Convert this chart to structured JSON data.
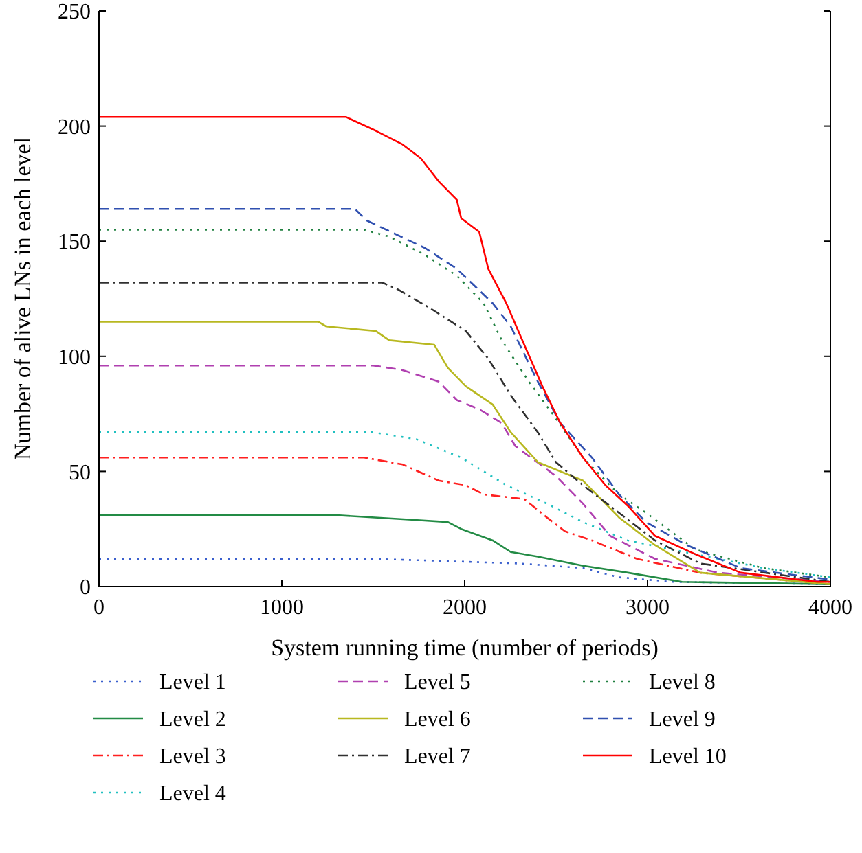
{
  "chart_data": {
    "type": "line",
    "xlabel": "System running time (number of periods)",
    "ylabel": "Number of alive LNs in each level",
    "xlim": [
      0,
      4000
    ],
    "ylim": [
      0,
      250
    ],
    "xticks": [
      0,
      1000,
      2000,
      3000,
      4000
    ],
    "yticks": [
      0,
      50,
      100,
      150,
      200,
      250
    ],
    "grid": false,
    "legend": "bottom",
    "series": [
      {
        "name": "Level 1",
        "color": "#3a5fcd",
        "line_style": "dotted",
        "x": [
          0,
          1500,
          1908,
          2301,
          2647,
          2844,
          3140,
          4000
        ],
        "values": [
          12,
          12,
          11,
          10,
          8,
          4,
          2,
          1
        ]
      },
      {
        "name": "Level 2",
        "color": "#238b45",
        "line_style": "solid",
        "x": [
          0,
          1300,
          1710,
          1908,
          1981,
          2154,
          2252,
          2400,
          2647,
          2893,
          3189,
          4000
        ],
        "values": [
          31,
          31,
          29,
          28,
          25,
          20,
          15,
          13,
          9,
          6,
          2,
          1
        ]
      },
      {
        "name": "Level 3",
        "color": "#ff2020",
        "line_style": "dashdot",
        "x": [
          0,
          1450,
          1661,
          1858,
          2006,
          2104,
          2326,
          2450,
          2548,
          2696,
          2943,
          3288,
          4000
        ],
        "values": [
          56,
          56,
          53,
          46,
          44,
          40,
          38,
          30,
          24,
          20,
          12,
          6,
          1
        ]
      },
      {
        "name": "Level 4",
        "color": "#20c0c0",
        "line_style": "dotted",
        "x": [
          0,
          1500,
          1735,
          1981,
          2228,
          2450,
          2647,
          2893,
          3633,
          4000
        ],
        "values": [
          67,
          67,
          64,
          56,
          44,
          36,
          28,
          20,
          8,
          4
        ]
      },
      {
        "name": "Level 5",
        "color": "#b040b0",
        "line_style": "dashed",
        "x": [
          0,
          1500,
          1661,
          1858,
          1957,
          2080,
          2203,
          2277,
          2499,
          2647,
          2795,
          3041,
          3386,
          4000
        ],
        "values": [
          96,
          96,
          94,
          89,
          81,
          77,
          71,
          61,
          48,
          36,
          22,
          12,
          6,
          2
        ]
      },
      {
        "name": "Level 6",
        "color": "#b8b820",
        "line_style": "solid",
        "x": [
          0,
          1200,
          1242,
          1513,
          1587,
          1834,
          1908,
          2006,
          2154,
          2252,
          2400,
          2647,
          2844,
          3041,
          3288,
          4000
        ],
        "values": [
          115,
          115,
          113,
          111,
          107,
          105,
          95,
          87,
          79,
          67,
          54,
          46,
          30,
          18,
          6,
          1
        ]
      },
      {
        "name": "Level 7",
        "color": "#303030",
        "line_style": "dashdot",
        "x": [
          0,
          1550,
          1636,
          1809,
          2006,
          2129,
          2252,
          2400,
          2499,
          2647,
          2844,
          3041,
          3288,
          4000
        ],
        "values": [
          132,
          132,
          129,
          121,
          111,
          99,
          83,
          67,
          54,
          44,
          32,
          20,
          10,
          2
        ]
      },
      {
        "name": "Level 8",
        "color": "#208040",
        "line_style": "dotted",
        "x": [
          0,
          1450,
          1587,
          1784,
          1957,
          2104,
          2203,
          2351,
          2499,
          2647,
          2844,
          2992,
          3263,
          3633,
          4000
        ],
        "values": [
          155,
          155,
          152,
          144,
          135,
          123,
          107,
          89,
          73,
          56,
          40,
          32,
          16,
          8,
          4
        ]
      },
      {
        "name": "Level 9",
        "color": "#3050b0",
        "line_style": "dashed",
        "x": [
          0,
          1400,
          1464,
          1784,
          1957,
          2154,
          2252,
          2400,
          2523,
          2696,
          2844,
          2992,
          3214,
          3510,
          4000
        ],
        "values": [
          164,
          164,
          159,
          147,
          138,
          123,
          113,
          89,
          71,
          56,
          40,
          28,
          18,
          8,
          3
        ]
      },
      {
        "name": "Level 10",
        "color": "#ff0000",
        "line_style": "solid",
        "x": [
          0,
          1350,
          1513,
          1661,
          1760,
          1858,
          1957,
          1981,
          2080,
          2129,
          2228,
          2326,
          2425,
          2523,
          2647,
          2770,
          2893,
          3041,
          3263,
          3510,
          3928,
          4000
        ],
        "values": [
          204,
          204,
          198,
          192,
          186,
          176,
          168,
          160,
          154,
          138,
          123,
          105,
          87,
          71,
          56,
          44,
          35,
          22,
          14,
          6,
          2,
          2
        ]
      }
    ]
  }
}
